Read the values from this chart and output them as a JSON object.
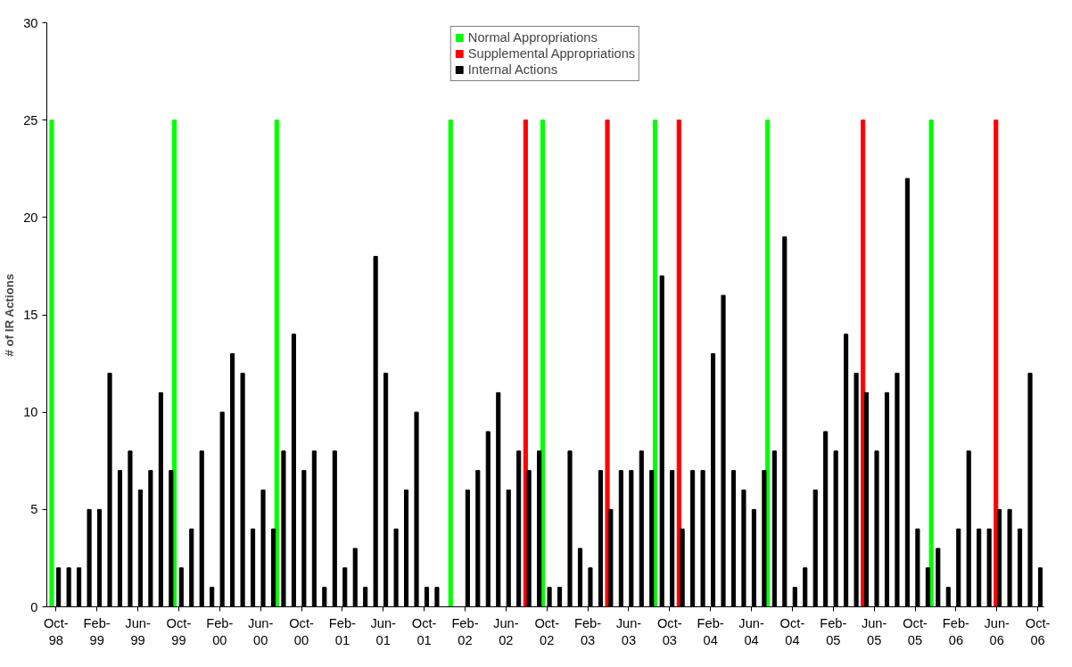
{
  "chart_data": {
    "type": "bar",
    "ylabel": "# of IR Actions",
    "categories": [
      "Oct-98",
      null,
      null,
      null,
      "Feb-99",
      null,
      null,
      null,
      "Jun-99",
      null,
      null,
      null,
      "Oct-99",
      null,
      null,
      null,
      "Feb-00",
      null,
      null,
      null,
      "Jun-00",
      null,
      null,
      null,
      "Oct-00",
      null,
      null,
      null,
      "Feb-01",
      null,
      null,
      null,
      "Jun-01",
      null,
      null,
      null,
      "Oct-01",
      null,
      null,
      null,
      "Feb-02",
      null,
      null,
      null,
      "Jun-02",
      null,
      null,
      null,
      "Oct-02",
      null,
      null,
      null,
      "Feb-03",
      null,
      null,
      null,
      "Jun-03",
      null,
      null,
      null,
      "Oct-03",
      null,
      null,
      null,
      "Feb-04",
      null,
      null,
      null,
      "Jun-04",
      null,
      null,
      null,
      "Oct-04",
      null,
      null,
      null,
      "Feb-05",
      null,
      null,
      null,
      "Jun-05",
      null,
      null,
      null,
      "Oct-05",
      null,
      null,
      null,
      "Feb-06",
      null,
      null,
      null,
      "Jun-06",
      null,
      null,
      null,
      "Oct-06"
    ],
    "series": [
      {
        "name": "Normal Appropriations",
        "color": "#00ff00",
        "values": [
          25,
          null,
          null,
          null,
          null,
          null,
          null,
          null,
          null,
          null,
          null,
          null,
          25,
          null,
          null,
          null,
          null,
          null,
          null,
          null,
          null,
          null,
          25,
          null,
          null,
          null,
          null,
          null,
          null,
          null,
          null,
          null,
          null,
          null,
          null,
          null,
          null,
          null,
          null,
          25,
          null,
          null,
          null,
          null,
          null,
          null,
          null,
          null,
          25,
          null,
          null,
          null,
          null,
          null,
          null,
          null,
          null,
          null,
          null,
          25,
          null,
          null,
          null,
          null,
          null,
          null,
          null,
          null,
          null,
          null,
          25,
          null,
          null,
          null,
          null,
          null,
          null,
          null,
          null,
          null,
          null,
          null,
          null,
          null,
          null,
          null,
          25,
          null,
          null,
          null,
          null,
          null,
          null,
          null,
          null,
          null,
          null
        ]
      },
      {
        "name": "Supplemental Appropriations",
        "color": "#ff0000",
        "values": [
          null,
          null,
          null,
          null,
          null,
          null,
          null,
          null,
          null,
          null,
          null,
          null,
          null,
          null,
          null,
          null,
          null,
          null,
          null,
          null,
          null,
          null,
          null,
          null,
          null,
          null,
          null,
          null,
          null,
          null,
          null,
          null,
          null,
          null,
          null,
          null,
          null,
          null,
          null,
          null,
          null,
          null,
          null,
          null,
          null,
          null,
          25,
          null,
          null,
          null,
          null,
          null,
          null,
          null,
          25,
          null,
          null,
          null,
          null,
          null,
          null,
          25,
          null,
          null,
          null,
          null,
          null,
          null,
          null,
          null,
          null,
          null,
          null,
          null,
          null,
          null,
          null,
          null,
          null,
          25,
          null,
          null,
          null,
          null,
          null,
          null,
          null,
          null,
          null,
          null,
          null,
          null,
          25,
          null,
          null,
          null,
          null
        ]
      },
      {
        "name": "Internal Actions",
        "color": "#000000",
        "values": [
          2,
          2,
          2,
          5,
          5,
          12,
          7,
          8,
          6,
          7,
          11,
          7,
          2,
          4,
          8,
          1,
          10,
          13,
          12,
          4,
          6,
          4,
          8,
          14,
          7,
          8,
          1,
          8,
          2,
          3,
          1,
          18,
          12,
          4,
          6,
          10,
          1,
          1,
          null,
          null,
          6,
          7,
          9,
          11,
          6,
          8,
          7,
          8,
          1,
          1,
          8,
          3,
          2,
          7,
          5,
          7,
          7,
          8,
          7,
          17,
          7,
          4,
          7,
          7,
          13,
          16,
          7,
          6,
          5,
          7,
          8,
          19,
          1,
          2,
          6,
          9,
          8,
          14,
          12,
          11,
          8,
          11,
          12,
          22,
          4,
          2,
          3,
          1,
          4,
          8,
          4,
          4,
          5,
          5,
          4,
          12,
          2
        ]
      }
    ],
    "ylim": [
      0,
      30
    ],
    "yticks": [
      0,
      5,
      10,
      15,
      20,
      25,
      30
    ],
    "grid": false,
    "legend": "top"
  }
}
